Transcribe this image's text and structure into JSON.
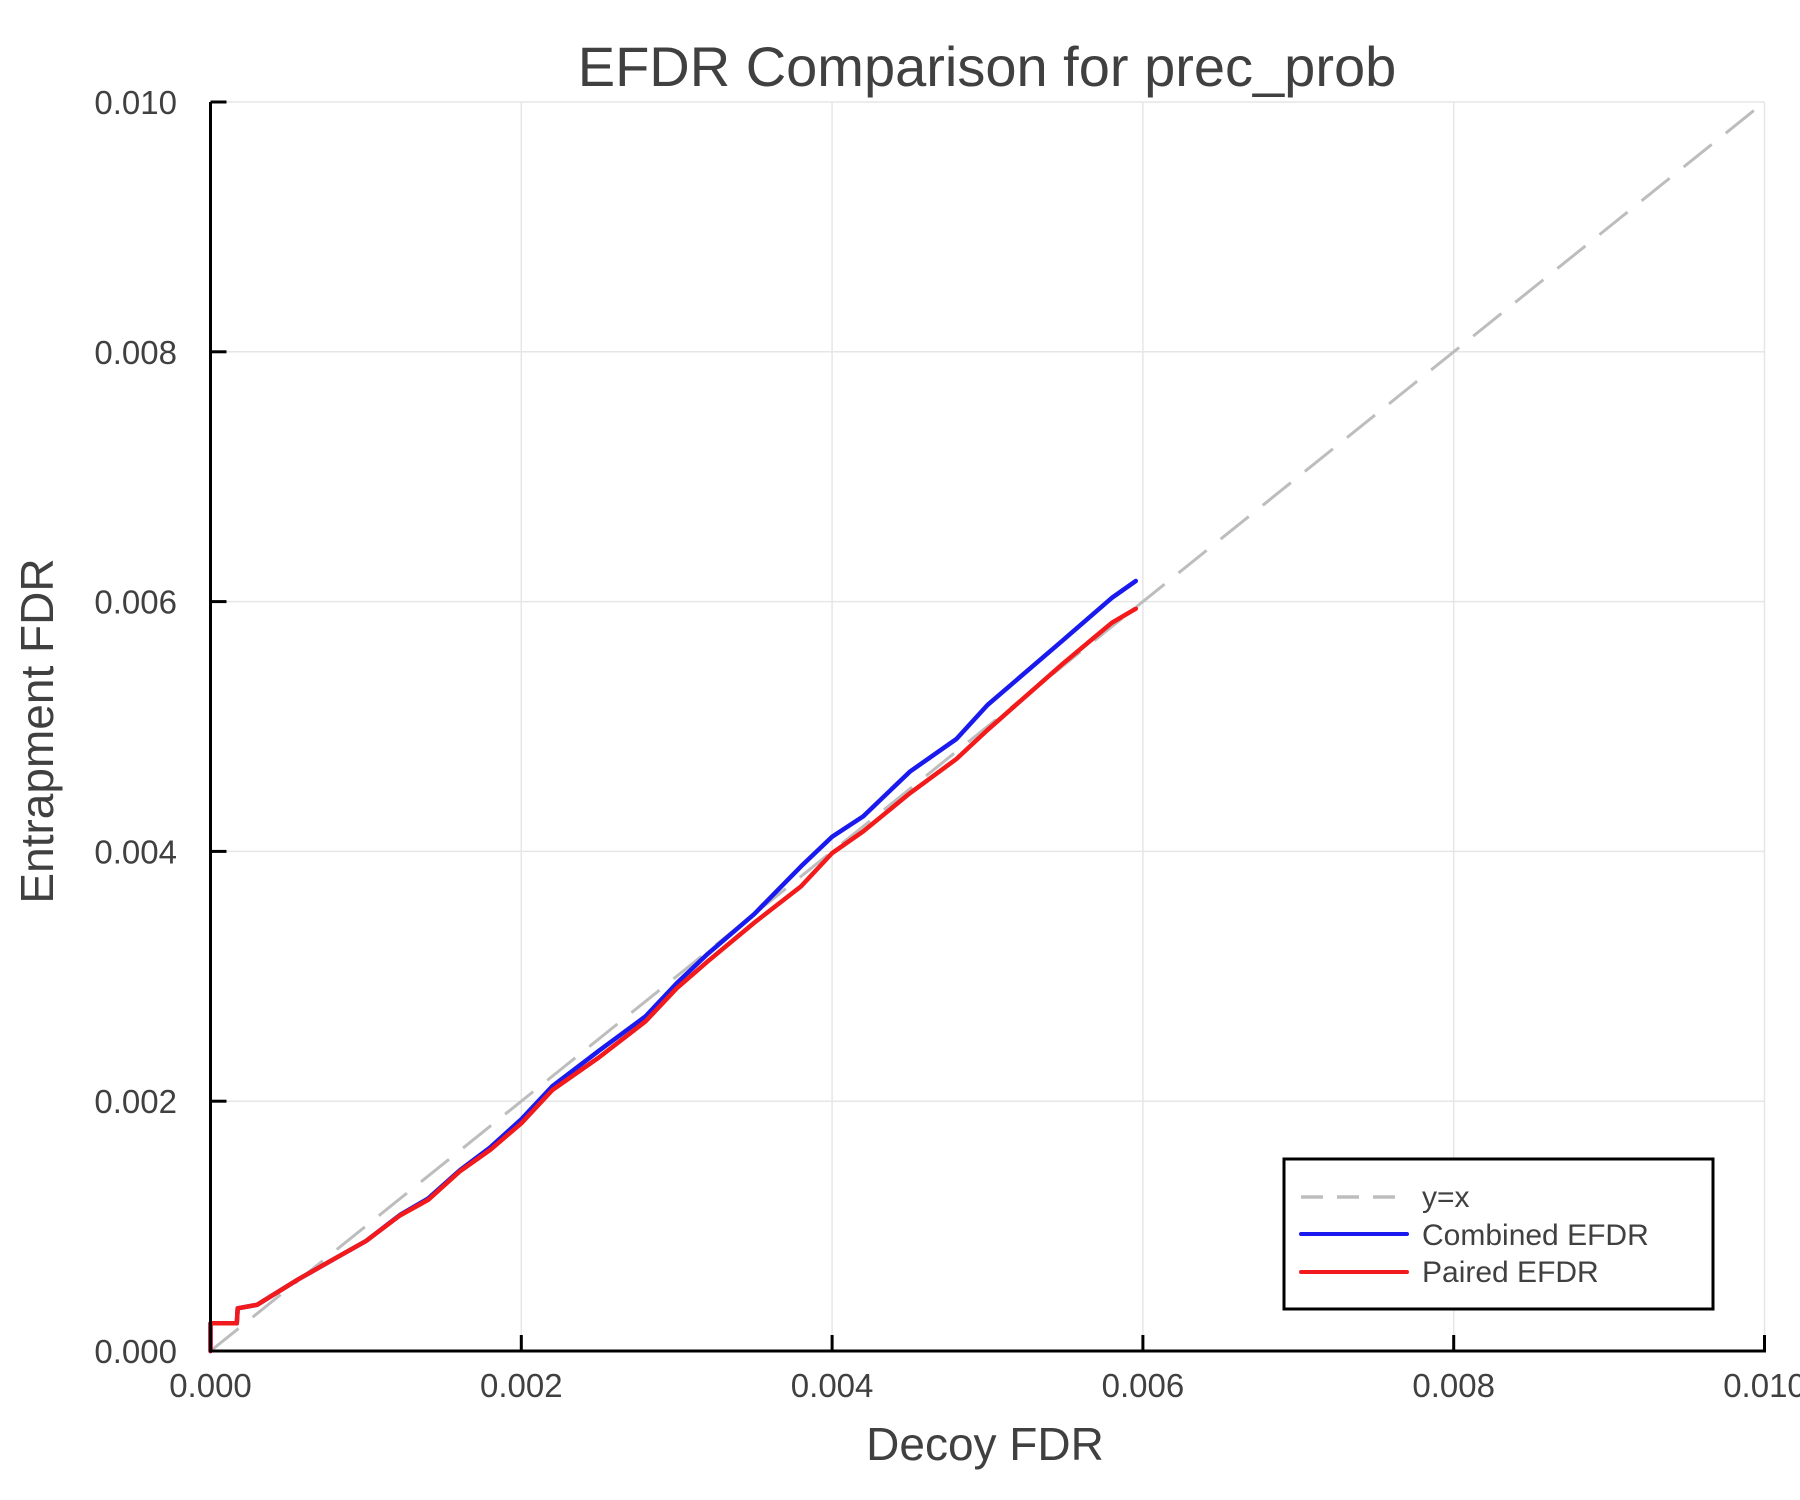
{
  "chart_data": {
    "type": "line",
    "title": "EFDR Comparison for prec_prob",
    "xlabel": "Decoy FDR",
    "ylabel": "Entrapment FDR",
    "xlim": [
      0.0,
      0.01
    ],
    "ylim": [
      0.0,
      0.01
    ],
    "xticks": [
      "0.000",
      "0.002",
      "0.004",
      "0.006",
      "0.008",
      "0.010"
    ],
    "yticks": [
      "0.000",
      "0.002",
      "0.004",
      "0.006",
      "0.008",
      "0.010"
    ],
    "grid": true,
    "legend_position": "lower right",
    "series": [
      {
        "name": "y=x",
        "style": "dashed",
        "color": "#bdbdbd",
        "x": [
          0.0,
          0.01
        ],
        "y": [
          0.0,
          0.01
        ]
      },
      {
        "name": "Combined EFDR",
        "style": "solid",
        "color": "#1a1aee",
        "x": [
          0,
          0,
          0.000169,
          0.000175,
          0.0003,
          0.000565,
          0.0008,
          0.001,
          0.001219,
          0.0014,
          0.001606,
          0.0018,
          0.002,
          0.0022,
          0.0025,
          0.0028,
          0.003,
          0.0032,
          0.0035,
          0.0038,
          0.004,
          0.0042,
          0.0045,
          0.0048,
          0.005,
          0.005488,
          0.0058,
          0.005954
        ],
        "y": [
          0,
          0.000222,
          0.000222,
          0.000342,
          0.00037,
          0.000574,
          0.00074,
          0.00088,
          0.001089,
          0.00122,
          0.001449,
          0.00163,
          0.001855,
          0.00212,
          0.002404,
          0.00268,
          0.002944,
          0.00318,
          0.0035,
          0.00388,
          0.004118,
          0.00428,
          0.004638,
          0.0049,
          0.005172,
          0.005693,
          0.00603,
          0.006165
        ]
      },
      {
        "name": "Paired EFDR",
        "style": "solid",
        "color": "#f21a1a",
        "x": [
          0,
          0,
          0.000169,
          0.000175,
          0.0003,
          0.000565,
          0.0008,
          0.001,
          0.001219,
          0.0014,
          0.001606,
          0.0018,
          0.002,
          0.0022,
          0.0025,
          0.0028,
          0.003,
          0.0032,
          0.0035,
          0.0038,
          0.004,
          0.0042,
          0.0045,
          0.0048,
          0.005,
          0.005488,
          0.0058,
          0.005954
        ],
        "y": [
          0,
          0.000222,
          0.000222,
          0.000342,
          0.00037,
          0.000574,
          0.00074,
          0.00088,
          0.001085,
          0.00121,
          0.00144,
          0.00161,
          0.001823,
          0.00209,
          0.002351,
          0.00264,
          0.002904,
          0.00312,
          0.00343,
          0.00372,
          0.003986,
          0.00416,
          0.004465,
          0.00474,
          0.004972,
          0.005506,
          0.00583,
          0.005943
        ]
      }
    ]
  },
  "legend": {
    "items": [
      {
        "label": "y=x",
        "color": "#bdbdbd",
        "style": "dashed"
      },
      {
        "label": "Combined EFDR",
        "color": "#1a1aee",
        "style": "solid"
      },
      {
        "label": "Paired EFDR",
        "color": "#f21a1a",
        "style": "solid"
      }
    ]
  },
  "colors": {
    "text": "#404040",
    "axis": "#000000",
    "grid": "#e6e6e6",
    "background": "#ffffff"
  }
}
